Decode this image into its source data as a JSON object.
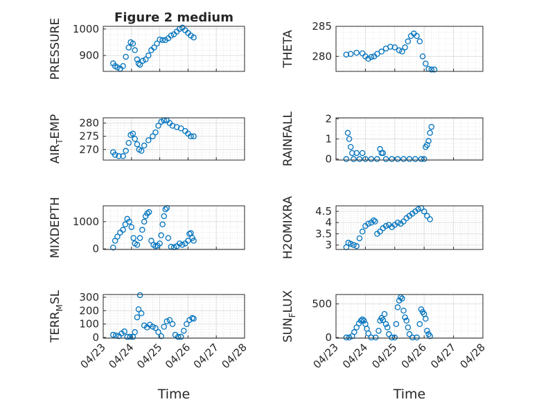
{
  "figure_title": "Figure 2 medium",
  "colors": {
    "marker": "#0072BD",
    "axes": "#262626",
    "grid": "#dcdcdc",
    "background": "#ffffff"
  },
  "chart_data": [
    {
      "type": "scatter",
      "ylabel_main": "PRESSURE",
      "ylabel_sub": "",
      "ylabel_tail": "",
      "title": "Figure 2 medium",
      "ylim": [
        840,
        1010
      ],
      "yticks": [
        900,
        1000
      ],
      "xlim": [
        0,
        5
      ],
      "xticks": [
        "04/23",
        "04/24",
        "04/25",
        "04/26",
        "04/27",
        "04/28"
      ],
      "show_xticklabels": false,
      "xlabel": "",
      "points": [
        [
          0.35,
          870
        ],
        [
          0.42,
          860
        ],
        [
          0.5,
          855
        ],
        [
          0.6,
          850
        ],
        [
          0.7,
          860
        ],
        [
          0.8,
          895
        ],
        [
          0.9,
          930
        ],
        [
          0.97,
          950
        ],
        [
          1.05,
          945
        ],
        [
          1.12,
          920
        ],
        [
          1.2,
          885
        ],
        [
          1.25,
          870
        ],
        [
          1.3,
          865
        ],
        [
          1.4,
          880
        ],
        [
          1.5,
          885
        ],
        [
          1.6,
          900
        ],
        [
          1.7,
          920
        ],
        [
          1.8,
          930
        ],
        [
          1.9,
          945
        ],
        [
          2.0,
          960
        ],
        [
          2.1,
          958
        ],
        [
          2.2,
          958
        ],
        [
          2.3,
          965
        ],
        [
          2.4,
          975
        ],
        [
          2.5,
          980
        ],
        [
          2.6,
          990
        ],
        [
          2.7,
          1000
        ],
        [
          2.8,
          1005
        ],
        [
          2.9,
          995
        ],
        [
          3.0,
          985
        ],
        [
          3.1,
          975
        ],
        [
          3.2,
          968
        ]
      ]
    },
    {
      "type": "scatter",
      "ylabel_main": "THETA",
      "ylabel_sub": "",
      "ylabel_tail": "",
      "ylim": [
        277.5,
        285
      ],
      "yticks": [
        280,
        285
      ],
      "xlim": [
        0,
        5
      ],
      "xticks": [
        "04/23",
        "04/24",
        "04/25",
        "04/26",
        "04/27",
        "04/28"
      ],
      "show_xticklabels": false,
      "xlabel": "",
      "points": [
        [
          0.35,
          280.3
        ],
        [
          0.5,
          280.4
        ],
        [
          0.7,
          280.6
        ],
        [
          0.9,
          280.5
        ],
        [
          1.0,
          280.0
        ],
        [
          1.1,
          279.6
        ],
        [
          1.2,
          279.9
        ],
        [
          1.3,
          280.0
        ],
        [
          1.4,
          280.4
        ],
        [
          1.55,
          280.8
        ],
        [
          1.7,
          281.3
        ],
        [
          1.85,
          281.6
        ],
        [
          2.0,
          281.5
        ],
        [
          2.15,
          281.0
        ],
        [
          2.25,
          280.8
        ],
        [
          2.35,
          281.5
        ],
        [
          2.45,
          282.5
        ],
        [
          2.55,
          283.4
        ],
        [
          2.65,
          283.8
        ],
        [
          2.75,
          283.4
        ],
        [
          2.85,
          282.5
        ],
        [
          2.95,
          280.0
        ],
        [
          3.05,
          278.8
        ],
        [
          3.15,
          277.9
        ],
        [
          3.25,
          277.8
        ],
        [
          3.35,
          277.8
        ]
      ]
    },
    {
      "type": "scatter",
      "ylabel_main": "AIR",
      "ylabel_sub": "T",
      "ylabel_tail": "EMP",
      "ylim": [
        266,
        282
      ],
      "yticks": [
        270,
        275,
        280
      ],
      "xlim": [
        0,
        5
      ],
      "xticks": [
        "04/23",
        "04/24",
        "04/25",
        "04/26",
        "04/27",
        "04/28"
      ],
      "show_xticklabels": false,
      "xlabel": "",
      "points": [
        [
          0.35,
          269.0
        ],
        [
          0.42,
          268.0
        ],
        [
          0.55,
          267.5
        ],
        [
          0.7,
          267.5
        ],
        [
          0.8,
          269.5
        ],
        [
          0.9,
          272.5
        ],
        [
          0.97,
          275.5
        ],
        [
          1.05,
          276.0
        ],
        [
          1.12,
          274.0
        ],
        [
          1.2,
          272.0
        ],
        [
          1.27,
          270.0
        ],
        [
          1.35,
          269.5
        ],
        [
          1.45,
          271.5
        ],
        [
          1.6,
          273.5
        ],
        [
          1.75,
          275.0
        ],
        [
          1.85,
          276.5
        ],
        [
          1.95,
          279.0
        ],
        [
          2.05,
          280.5
        ],
        [
          2.15,
          281.0
        ],
        [
          2.25,
          281.0
        ],
        [
          2.35,
          280.0
        ],
        [
          2.45,
          279.0
        ],
        [
          2.6,
          278.5
        ],
        [
          2.75,
          278.0
        ],
        [
          2.9,
          277.0
        ],
        [
          3.0,
          276.0
        ],
        [
          3.1,
          275.0
        ],
        [
          3.2,
          275.0
        ]
      ]
    },
    {
      "type": "scatter",
      "ylabel_main": "RAINFALL",
      "ylabel_sub": "",
      "ylabel_tail": "",
      "ylim": [
        -0.05,
        2.05
      ],
      "yticks": [
        0,
        1,
        2
      ],
      "xlim": [
        0,
        5
      ],
      "xticks": [
        "04/23",
        "04/24",
        "04/25",
        "04/26",
        "04/27",
        "04/28"
      ],
      "show_xticklabels": false,
      "xlabel": "",
      "points": [
        [
          0.35,
          0
        ],
        [
          0.4,
          1.3
        ],
        [
          0.45,
          1.0
        ],
        [
          0.5,
          0.6
        ],
        [
          0.55,
          0.3
        ],
        [
          0.6,
          0
        ],
        [
          0.7,
          0.3
        ],
        [
          0.8,
          0
        ],
        [
          0.9,
          0.3
        ],
        [
          1.0,
          0
        ],
        [
          1.2,
          0
        ],
        [
          1.4,
          0
        ],
        [
          1.5,
          0.5
        ],
        [
          1.55,
          0.3
        ],
        [
          1.6,
          0.3
        ],
        [
          1.7,
          0
        ],
        [
          1.9,
          0
        ],
        [
          2.1,
          0
        ],
        [
          2.3,
          0
        ],
        [
          2.5,
          0
        ],
        [
          2.7,
          0
        ],
        [
          2.9,
          0
        ],
        [
          3.0,
          0
        ],
        [
          3.05,
          0.6
        ],
        [
          3.1,
          0.7
        ],
        [
          3.15,
          0.9
        ],
        [
          3.2,
          1.3
        ],
        [
          3.25,
          1.6
        ]
      ]
    },
    {
      "type": "scatter",
      "ylabel_main": "MIXDEPTH",
      "ylabel_sub": "",
      "ylabel_tail": "",
      "ylim": [
        -20,
        1580
      ],
      "yticks": [
        0,
        1000
      ],
      "xlim": [
        0,
        5
      ],
      "xticks": [
        "04/23",
        "04/24",
        "04/25",
        "04/26",
        "04/27",
        "04/28"
      ],
      "show_xticklabels": false,
      "xlabel": "",
      "points": [
        [
          0.35,
          50
        ],
        [
          0.42,
          300
        ],
        [
          0.5,
          450
        ],
        [
          0.6,
          600
        ],
        [
          0.7,
          700
        ],
        [
          0.78,
          900
        ],
        [
          0.85,
          1100
        ],
        [
          0.92,
          1000
        ],
        [
          1.0,
          800
        ],
        [
          1.07,
          400
        ],
        [
          1.12,
          200
        ],
        [
          1.2,
          150
        ],
        [
          1.3,
          400
        ],
        [
          1.38,
          700
        ],
        [
          1.45,
          1000
        ],
        [
          1.5,
          1200
        ],
        [
          1.56,
          1300
        ],
        [
          1.62,
          1350
        ],
        [
          1.7,
          300
        ],
        [
          1.78,
          150
        ],
        [
          1.85,
          100
        ],
        [
          1.92,
          120
        ],
        [
          2.0,
          200
        ],
        [
          2.05,
          500
        ],
        [
          2.1,
          900
        ],
        [
          2.15,
          1200
        ],
        [
          2.2,
          1450
        ],
        [
          2.25,
          1500
        ],
        [
          2.3,
          400
        ],
        [
          2.4,
          80
        ],
        [
          2.5,
          60
        ],
        [
          2.6,
          100
        ],
        [
          2.7,
          200
        ],
        [
          2.8,
          150
        ],
        [
          2.9,
          200
        ],
        [
          3.0,
          300
        ],
        [
          3.05,
          550
        ],
        [
          3.1,
          580
        ],
        [
          3.15,
          400
        ],
        [
          3.2,
          300
        ]
      ]
    },
    {
      "type": "scatter",
      "ylabel_main": "H2OMIXRA",
      "ylabel_sub": "",
      "ylabel_tail": "",
      "ylim": [
        2.8,
        4.75
      ],
      "yticks": [
        3,
        3.5,
        4,
        4.5
      ],
      "xlim": [
        0,
        5
      ],
      "xticks": [
        "04/23",
        "04/24",
        "04/25",
        "04/26",
        "04/27",
        "04/28"
      ],
      "show_xticklabels": false,
      "xlabel": "",
      "points": [
        [
          0.35,
          2.9
        ],
        [
          0.42,
          3.1
        ],
        [
          0.5,
          3.05
        ],
        [
          0.6,
          3.0
        ],
        [
          0.7,
          2.95
        ],
        [
          0.8,
          3.3
        ],
        [
          0.9,
          3.6
        ],
        [
          1.0,
          3.85
        ],
        [
          1.1,
          3.95
        ],
        [
          1.2,
          4.0
        ],
        [
          1.28,
          4.1
        ],
        [
          1.33,
          4.05
        ],
        [
          1.4,
          3.5
        ],
        [
          1.5,
          3.6
        ],
        [
          1.6,
          3.75
        ],
        [
          1.7,
          3.85
        ],
        [
          1.8,
          3.9
        ],
        [
          1.9,
          3.8
        ],
        [
          2.0,
          3.9
        ],
        [
          2.1,
          4.0
        ],
        [
          2.2,
          3.95
        ],
        [
          2.3,
          4.05
        ],
        [
          2.4,
          4.2
        ],
        [
          2.5,
          4.3
        ],
        [
          2.6,
          4.4
        ],
        [
          2.7,
          4.5
        ],
        [
          2.8,
          4.6
        ],
        [
          2.9,
          4.65
        ],
        [
          3.0,
          4.5
        ],
        [
          3.1,
          4.3
        ],
        [
          3.2,
          4.15
        ]
      ]
    },
    {
      "type": "scatter",
      "ylabel_main": "TERR",
      "ylabel_sub": "M",
      "ylabel_tail": "SL",
      "ylim": [
        -5,
        320
      ],
      "yticks": [
        0,
        100,
        200,
        300
      ],
      "xlim": [
        0,
        5
      ],
      "xticks": [
        "04/23",
        "04/24",
        "04/25",
        "04/26",
        "04/27",
        "04/28"
      ],
      "show_xticklabels": true,
      "xlabel": "Time",
      "points": [
        [
          0.35,
          20
        ],
        [
          0.45,
          15
        ],
        [
          0.55,
          10
        ],
        [
          0.65,
          30
        ],
        [
          0.75,
          45
        ],
        [
          0.85,
          5
        ],
        [
          0.95,
          5
        ],
        [
          1.05,
          5
        ],
        [
          1.12,
          40
        ],
        [
          1.2,
          150
        ],
        [
          1.25,
          210
        ],
        [
          1.3,
          315
        ],
        [
          1.35,
          180
        ],
        [
          1.45,
          90
        ],
        [
          1.55,
          75
        ],
        [
          1.65,
          95
        ],
        [
          1.75,
          80
        ],
        [
          1.85,
          70
        ],
        [
          1.95,
          40
        ],
        [
          2.05,
          10
        ],
        [
          2.15,
          80
        ],
        [
          2.25,
          120
        ],
        [
          2.35,
          130
        ],
        [
          2.45,
          100
        ],
        [
          2.55,
          20
        ],
        [
          2.65,
          5
        ],
        [
          2.75,
          5
        ],
        [
          2.85,
          50
        ],
        [
          2.95,
          100
        ],
        [
          3.05,
          130
        ],
        [
          3.15,
          145
        ],
        [
          3.2,
          140
        ]
      ]
    },
    {
      "type": "scatter",
      "ylabel_main": "SUN",
      "ylabel_sub": "F",
      "ylabel_tail": "LUX",
      "ylim": [
        -10,
        640
      ],
      "yticks": [
        0,
        500
      ],
      "xlim": [
        0,
        5
      ],
      "xticks": [
        "04/23",
        "04/24",
        "04/25",
        "04/26",
        "04/27",
        "04/28"
      ],
      "show_xticklabels": true,
      "xlabel": "Time",
      "points": [
        [
          0.35,
          0
        ],
        [
          0.45,
          0
        ],
        [
          0.55,
          20
        ],
        [
          0.62,
          80
        ],
        [
          0.7,
          150
        ],
        [
          0.78,
          210
        ],
        [
          0.85,
          250
        ],
        [
          0.9,
          270
        ],
        [
          0.95,
          250
        ],
        [
          1.0,
          200
        ],
        [
          1.05,
          130
        ],
        [
          1.1,
          60
        ],
        [
          1.2,
          0
        ],
        [
          1.35,
          0
        ],
        [
          1.45,
          100
        ],
        [
          1.5,
          250
        ],
        [
          1.55,
          290
        ],
        [
          1.6,
          260
        ],
        [
          1.65,
          350
        ],
        [
          1.7,
          200
        ],
        [
          1.75,
          150
        ],
        [
          1.8,
          50
        ],
        [
          1.9,
          0
        ],
        [
          2.0,
          0
        ],
        [
          2.05,
          200
        ],
        [
          2.1,
          450
        ],
        [
          2.15,
          550
        ],
        [
          2.2,
          600
        ],
        [
          2.25,
          580
        ],
        [
          2.3,
          400
        ],
        [
          2.35,
          300
        ],
        [
          2.4,
          250
        ],
        [
          2.45,
          150
        ],
        [
          2.5,
          50
        ],
        [
          2.6,
          0
        ],
        [
          2.75,
          0
        ],
        [
          2.85,
          200
        ],
        [
          2.9,
          420
        ],
        [
          2.95,
          380
        ],
        [
          3.0,
          350
        ],
        [
          3.05,
          280
        ],
        [
          3.1,
          100
        ],
        [
          3.15,
          50
        ],
        [
          3.2,
          20
        ]
      ]
    }
  ]
}
